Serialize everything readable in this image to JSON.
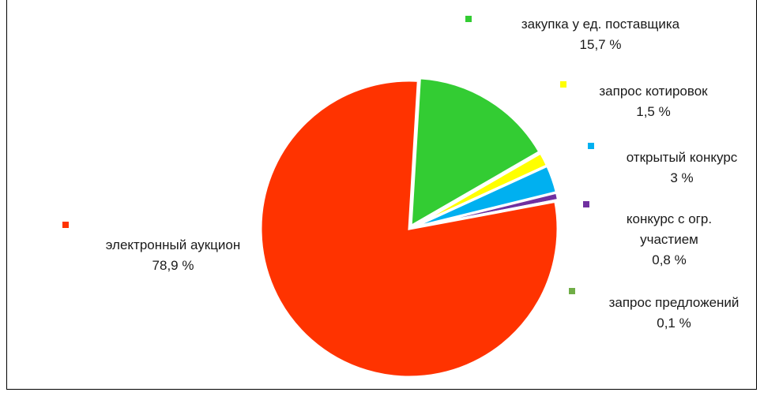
{
  "chart_data": {
    "type": "pie",
    "slices": [
      {
        "name": "электронный аукцион",
        "value_label": "78,9 %",
        "value": 78.9,
        "color": "#ff3300"
      },
      {
        "name": "закупка у ед. поставщика",
        "value_label": "15,7 %",
        "value": 15.7,
        "color": "#33cc33"
      },
      {
        "name": "запрос котировок",
        "value_label": "1,5 %",
        "value": 1.5,
        "color": "#ffff00"
      },
      {
        "name": "открытый конкурс",
        "value_label": "3 %",
        "value": 3.0,
        "color": "#00b0f0"
      },
      {
        "name_lines": [
          "конкурс с огр.",
          "участием"
        ],
        "name": "конкурс с огр. участием",
        "value_label": "0,8 %",
        "value": 0.8,
        "color": "#7030a0"
      },
      {
        "name": "запрос предложений",
        "value_label": "0,1 %",
        "value": 0.1,
        "color": "#70ad47"
      }
    ],
    "legend": "data labels beside slices"
  }
}
